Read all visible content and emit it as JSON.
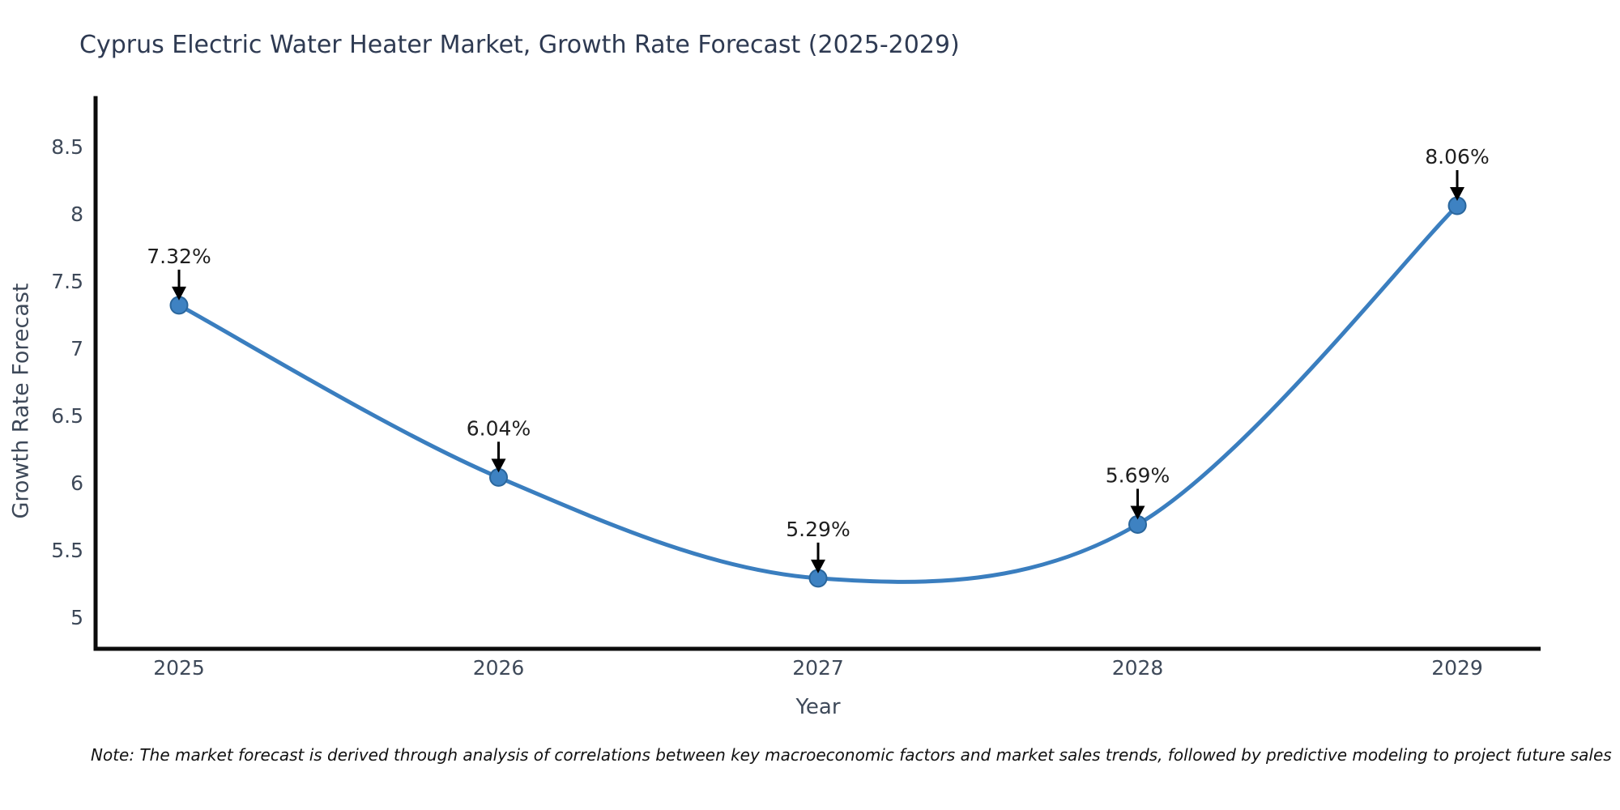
{
  "note": "Note: The market forecast is derived through analysis of correlations between key macroeconomic factors and market sales trends, followed by predictive modeling to project future sales",
  "chart_data": {
    "type": "line",
    "title": "Cyprus Electric Water Heater Market, Growth Rate Forecast (2025-2029)",
    "xlabel": "Year",
    "ylabel": "Growth Rate Forecast",
    "x": [
      "2025",
      "2026",
      "2027",
      "2028",
      "2029"
    ],
    "series": [
      {
        "name": "Growth Rate Forecast",
        "values": [
          7.32,
          6.04,
          5.29,
          5.69,
          8.06
        ]
      }
    ],
    "point_labels": [
      "7.32%",
      "6.04%",
      "5.29%",
      "5.69%",
      "8.06%"
    ],
    "yticks": [
      5,
      5.5,
      6,
      6.5,
      7,
      7.5,
      8,
      8.5
    ],
    "ylim": [
      4.76,
      8.87
    ],
    "grid": false,
    "legend": false,
    "colors": {
      "line": "#3a7ebf",
      "marker": "#3e82c2",
      "marker_edge": "#2a669c",
      "axis": "#0b0b0b",
      "tick_label": "#3e4959",
      "title": "#2e3a52",
      "annotation": "#1f1f1f",
      "arrow": "#000000",
      "note": "#111111",
      "background": "#ffffff"
    }
  }
}
